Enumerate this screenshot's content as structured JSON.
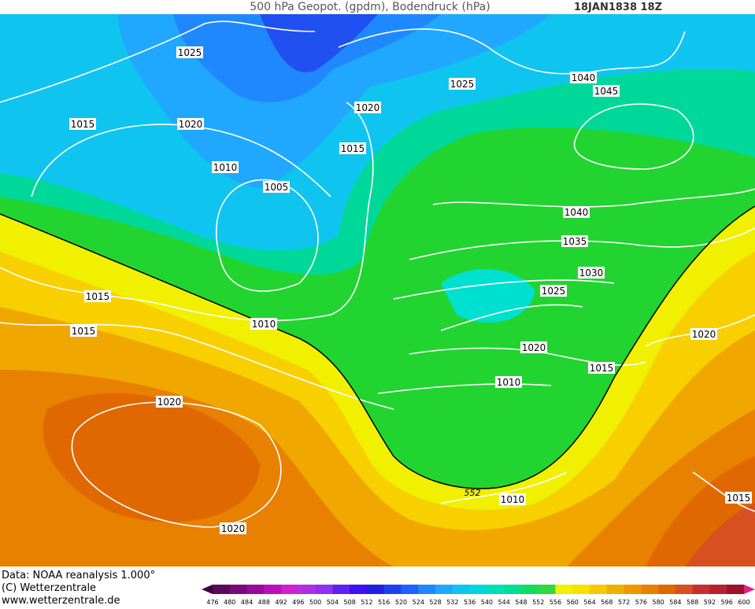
{
  "header": {
    "title": "500 hPa Geopot. (gpdm), Bodendruck (hPa)",
    "date": "18JAN1838 18Z"
  },
  "isobar_labels": [
    1025,
    1020,
    1015,
    1010,
    1005,
    1020,
    1015,
    1025,
    1040,
    1045,
    1040,
    1035,
    1030,
    1025,
    1020,
    1015,
    1010,
    1010,
    1015,
    1015,
    1020,
    1020,
    1010,
    1020,
    1015
  ],
  "contour_label": "552",
  "footer": {
    "data": "Data: NOAA reanalysis 1.000°",
    "copyright": "(C) Wetterzentrale",
    "url": "www.wetterzentrale.de"
  },
  "colorbar": {
    "ticks": [
      476,
      480,
      484,
      488,
      492,
      496,
      500,
      504,
      508,
      512,
      516,
      520,
      524,
      528,
      532,
      536,
      540,
      544,
      548,
      552,
      556,
      560,
      564,
      568,
      572,
      576,
      580,
      584,
      588,
      592,
      596,
      600
    ],
    "colors": [
      "#5a0a5a",
      "#7a0a7a",
      "#9a0a9a",
      "#ba10ba",
      "#d020d0",
      "#b030e0",
      "#9030f0",
      "#6020f0",
      "#4010f0",
      "#2020e0",
      "#2040f0",
      "#2060ff",
      "#2088ff",
      "#20a8ff",
      "#10c4f0",
      "#00d8e0",
      "#00e0b8",
      "#00e090",
      "#10dc60",
      "#30d840",
      "#f0f000",
      "#f8e000",
      "#f8c800",
      "#f0b000",
      "#f09800",
      "#e88000",
      "#e06800",
      "#d85020",
      "#c83030",
      "#b82030",
      "#a01028"
    ],
    "under_color": "#400040",
    "over_color": "#e0208a"
  }
}
